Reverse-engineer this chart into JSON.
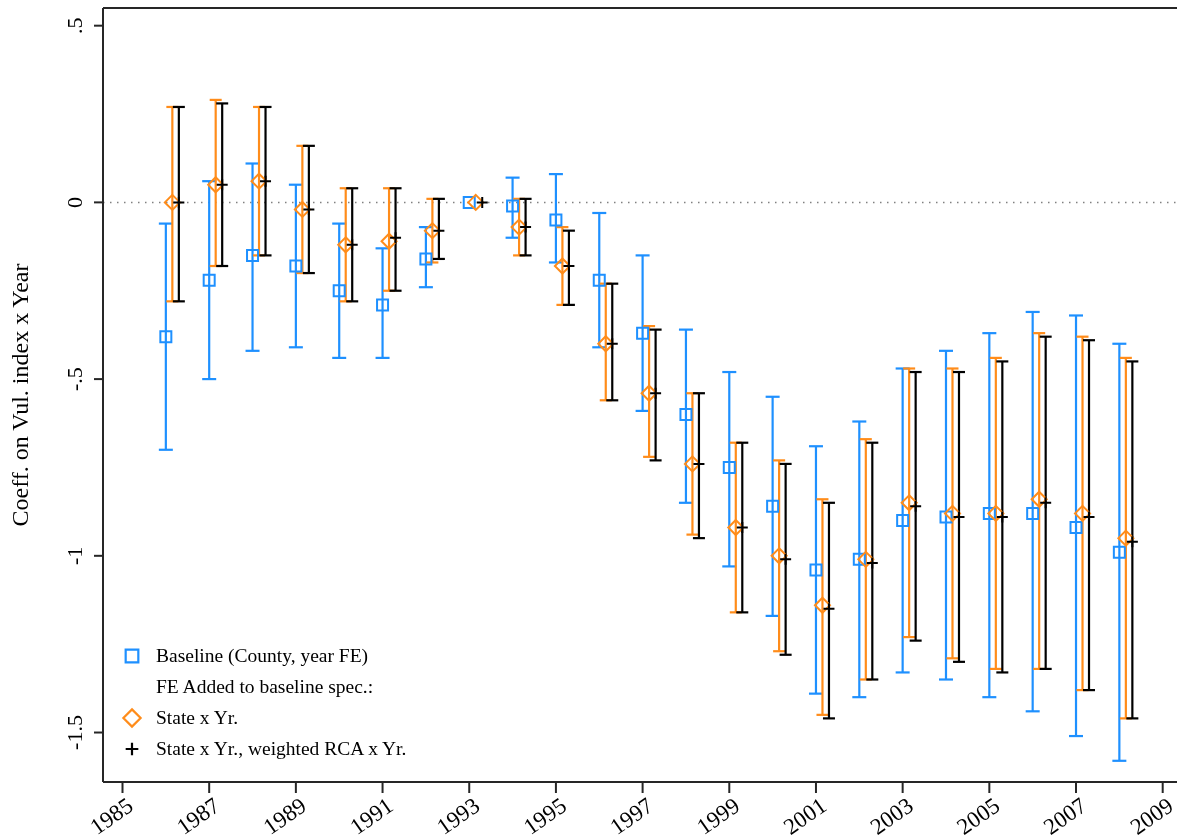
{
  "chart_data": {
    "type": "scatter",
    "ylabel": "Coeff. on Vul. index x Year",
    "annotations": [
      "FE Added to baseline spec.:"
    ],
    "xlim": [
      1984.55,
      2009.33
    ],
    "xticks": [
      1985,
      1987,
      1989,
      1991,
      1993,
      1995,
      1997,
      1999,
      2001,
      2003,
      2005,
      2007,
      2009
    ],
    "ylim": [
      -1.64,
      0.55
    ],
    "yticks": [
      {
        "value": 0.5,
        "label": ".5"
      },
      0,
      {
        "value": -0.5,
        "label": "-.5"
      },
      -1,
      -1.5
    ],
    "ref_lines": [
      {
        "axis": "y",
        "value": 0,
        "color": "#808080",
        "line_style": "dotted"
      }
    ],
    "legend": "bottom left",
    "series": [
      {
        "name": "Baseline (County, year FE)",
        "color": "#1e90ff",
        "marker": "square",
        "x": [
          1986,
          1987,
          1988,
          1989,
          1990,
          1991,
          1992,
          1993,
          1994,
          1995,
          1996,
          1997,
          1998,
          1999,
          2000,
          2001,
          2002,
          2003,
          2004,
          2005,
          2006,
          2007,
          2008
        ],
        "values": [
          -0.38,
          -0.22,
          -0.15,
          -0.18,
          -0.25,
          -0.29,
          -0.16,
          0,
          -0.01,
          -0.05,
          -0.22,
          -0.37,
          -0.6,
          -0.75,
          -0.86,
          -1.04,
          -1.01,
          -0.9,
          -0.89,
          -0.88,
          -0.88,
          -0.92,
          -0.99
        ],
        "errors": [
          [
            -0.7,
            -0.06
          ],
          [
            -0.5,
            0.06
          ],
          [
            -0.42,
            0.11
          ],
          [
            -0.41,
            0.05
          ],
          [
            -0.44,
            -0.06
          ],
          [
            -0.44,
            -0.13
          ],
          [
            -0.24,
            -0.07
          ],
          null,
          [
            -0.1,
            0.07
          ],
          [
            -0.17,
            0.08
          ],
          [
            -0.41,
            -0.03
          ],
          [
            -0.59,
            -0.15
          ],
          [
            -0.85,
            -0.36
          ],
          [
            -1.03,
            -0.48
          ],
          [
            -1.17,
            -0.55
          ],
          [
            -1.39,
            -0.69
          ],
          [
            -1.4,
            -0.62
          ],
          [
            -1.33,
            -0.47
          ],
          [
            -1.35,
            -0.42
          ],
          [
            -1.4,
            -0.37
          ],
          [
            -1.44,
            -0.31
          ],
          [
            -1.51,
            -0.32
          ],
          [
            -1.58,
            -0.4
          ]
        ]
      },
      {
        "name": "State x Yr.",
        "color": "#ff8c1a",
        "marker": "diamond",
        "x": [
          1986.15,
          1987.15,
          1988.15,
          1989.15,
          1990.15,
          1991.15,
          1992.15,
          1993.15,
          1994.15,
          1995.15,
          1996.15,
          1997.15,
          1998.15,
          1999.15,
          2000.15,
          2001.15,
          2002.15,
          2003.15,
          2004.15,
          2005.15,
          2006.15,
          2007.15,
          2008.15
        ],
        "values": [
          0,
          0.05,
          0.06,
          -0.02,
          -0.12,
          -0.11,
          -0.08,
          0,
          -0.07,
          -0.18,
          -0.4,
          -0.54,
          -0.74,
          -0.92,
          -1.0,
          -1.14,
          -1.01,
          -0.85,
          -0.88,
          -0.88,
          -0.84,
          -0.88,
          -0.95
        ],
        "errors": [
          [
            -0.28,
            0.27
          ],
          [
            -0.18,
            0.29
          ],
          [
            -0.15,
            0.27
          ],
          [
            -0.2,
            0.16
          ],
          [
            -0.28,
            0.04
          ],
          [
            -0.25,
            0.04
          ],
          [
            -0.17,
            0.01
          ],
          null,
          [
            -0.15,
            0.01
          ],
          [
            -0.29,
            -0.07
          ],
          [
            -0.56,
            -0.23
          ],
          [
            -0.72,
            -0.35
          ],
          [
            -0.94,
            -0.54
          ],
          [
            -1.16,
            -0.68
          ],
          [
            -1.27,
            -0.73
          ],
          [
            -1.45,
            -0.84
          ],
          [
            -1.35,
            -0.67
          ],
          [
            -1.23,
            -0.47
          ],
          [
            -1.29,
            -0.47
          ],
          [
            -1.32,
            -0.44
          ],
          [
            -1.32,
            -0.37
          ],
          [
            -1.38,
            -0.38
          ],
          [
            -1.46,
            -0.44
          ]
        ]
      },
      {
        "name": "State x Yr., weighted RCA x Yr.",
        "color": "#000000",
        "marker": "cross",
        "x": [
          1986.3,
          1987.3,
          1988.3,
          1989.3,
          1990.3,
          1991.3,
          1992.3,
          1993.3,
          1994.3,
          1995.3,
          1996.3,
          1997.3,
          1998.3,
          1999.3,
          2000.3,
          2001.3,
          2002.3,
          2003.3,
          2004.3,
          2005.3,
          2006.3,
          2007.3,
          2008.3
        ],
        "values": [
          0,
          0.05,
          0.06,
          -0.02,
          -0.12,
          -0.1,
          -0.08,
          0,
          -0.07,
          -0.18,
          -0.4,
          -0.54,
          -0.74,
          -0.92,
          -1.01,
          -1.15,
          -1.02,
          -0.86,
          -0.89,
          -0.89,
          -0.85,
          -0.89,
          -0.96
        ],
        "errors": [
          [
            -0.28,
            0.27
          ],
          [
            -0.18,
            0.28
          ],
          [
            -0.15,
            0.27
          ],
          [
            -0.2,
            0.16
          ],
          [
            -0.28,
            0.04
          ],
          [
            -0.25,
            0.04
          ],
          [
            -0.16,
            0.01
          ],
          null,
          [
            -0.15,
            0.01
          ],
          [
            -0.29,
            -0.08
          ],
          [
            -0.56,
            -0.23
          ],
          [
            -0.73,
            -0.36
          ],
          [
            -0.95,
            -0.54
          ],
          [
            -1.16,
            -0.68
          ],
          [
            -1.28,
            -0.74
          ],
          [
            -1.46,
            -0.85
          ],
          [
            -1.35,
            -0.68
          ],
          [
            -1.24,
            -0.48
          ],
          [
            -1.3,
            -0.48
          ],
          [
            -1.33,
            -0.45
          ],
          [
            -1.32,
            -0.38
          ],
          [
            -1.38,
            -0.39
          ],
          [
            -1.46,
            -0.45
          ]
        ]
      }
    ]
  }
}
